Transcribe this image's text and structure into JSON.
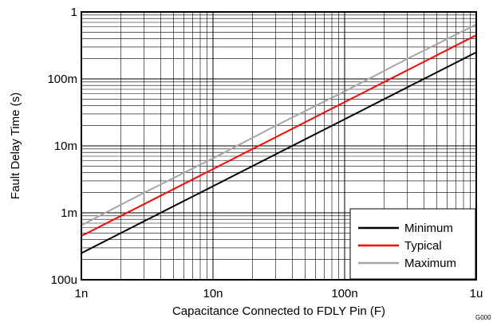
{
  "chart_data": {
    "type": "line",
    "title": "",
    "xlabel": "Capacitance Connected to FDLY Pin (F)",
    "ylabel": "Fault Delay Time (s)",
    "x_scale": "log",
    "y_scale": "log",
    "xlim": [
      1e-09,
      1e-06
    ],
    "ylim": [
      0.0001,
      1
    ],
    "grid": true,
    "legend_position": "bottom-right",
    "x_ticks": [
      {
        "value": 1e-09,
        "label": "1n"
      },
      {
        "value": 1e-08,
        "label": "10n"
      },
      {
        "value": 1e-07,
        "label": "100n"
      },
      {
        "value": 1e-06,
        "label": "1u"
      }
    ],
    "y_ticks": [
      {
        "value": 0.0001,
        "label": "100u"
      },
      {
        "value": 0.001,
        "label": "1m"
      },
      {
        "value": 0.01,
        "label": "10m"
      },
      {
        "value": 0.1,
        "label": "100m"
      },
      {
        "value": 1,
        "label": "1"
      }
    ],
    "series": [
      {
        "name": "Minimum",
        "color": "#000000",
        "x": [
          1e-09,
          3e-09,
          5e-09,
          7e-09,
          1e-08,
          3e-08,
          1e-07,
          3e-07,
          1e-06
        ],
        "y": [
          0.00025,
          0.00075,
          0.00125,
          0.00175,
          0.0025,
          0.0075,
          0.025,
          0.075,
          0.25
        ]
      },
      {
        "name": "Typical",
        "color": "#ff0000",
        "x": [
          1e-09,
          3e-09,
          1e-08,
          3e-08,
          1e-07,
          3e-07,
          1e-06
        ],
        "y": [
          0.00045,
          0.00135,
          0.0045,
          0.0135,
          0.045,
          0.135,
          0.45
        ]
      },
      {
        "name": "Maximum",
        "color": "#a6a6a6",
        "x": [
          1e-09,
          3e-09,
          1e-08,
          3e-08,
          1e-07,
          3e-07,
          1e-06
        ],
        "y": [
          0.00065,
          0.002,
          0.0065,
          0.02,
          0.065,
          0.2,
          0.65
        ]
      }
    ]
  },
  "watermark": "G000"
}
